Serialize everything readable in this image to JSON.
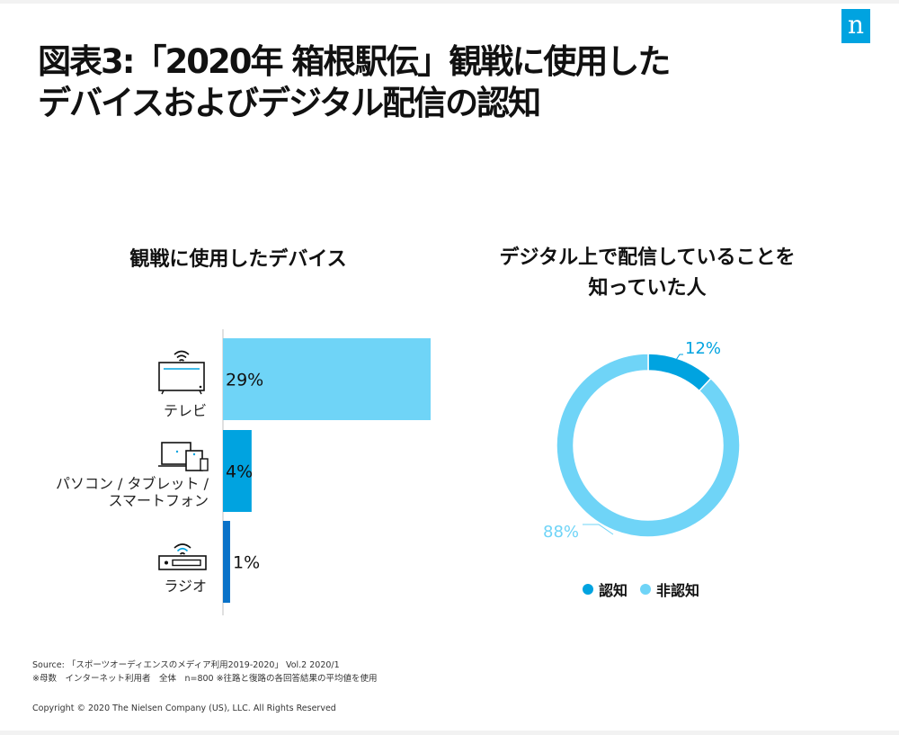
{
  "logo_text": "n",
  "title_lines": [
    "図表3:「2020年 箱根駅伝」観戦に使用した",
    "デバイスおよびデジタル配信の認知"
  ],
  "colors": {
    "light_blue": "#6fd4f7",
    "mid_blue": "#00a3e0",
    "dark_blue": "#0a72c8",
    "label_text": "#222222"
  },
  "chart_data": [
    {
      "type": "bar",
      "orientation": "horizontal",
      "title": "観戦に使用したデバイス",
      "categories": [
        "テレビ",
        "パソコン / タブレット / スマートフォン",
        "ラジオ"
      ],
      "values": [
        29,
        4,
        1
      ],
      "value_labels": [
        "29%",
        "4%",
        "1%"
      ],
      "unit": "%",
      "bar_colors": [
        "#6fd4f7",
        "#00a3e0",
        "#0a72c8"
      ],
      "category_icons": [
        "tv-icon",
        "computer-tablet-icon",
        "radio-icon"
      ],
      "xlim": [
        0,
        29
      ],
      "grid": false
    },
    {
      "type": "pie",
      "variant": "donut",
      "title_lines": [
        "デジタル上で配信していることを",
        "知っていた人"
      ],
      "labels": [
        "認知",
        "非認知"
      ],
      "values": [
        12,
        88
      ],
      "value_labels": [
        "12%",
        "88%"
      ],
      "colors": [
        "#00a3e0",
        "#6fd4f7"
      ],
      "legend_position": "bottom"
    }
  ],
  "footer": {
    "source": "Source: 「スポーツオーディエンスのメディア利用2019-2020」 Vol.2 2020/1",
    "note": "※母数　インターネット利用者　全体　n=800 ※往路と復路の各回答結果の平均値を使用",
    "copyright": "Copyright © 2020 The Nielsen Company (US), LLC. All Rights Reserved"
  }
}
